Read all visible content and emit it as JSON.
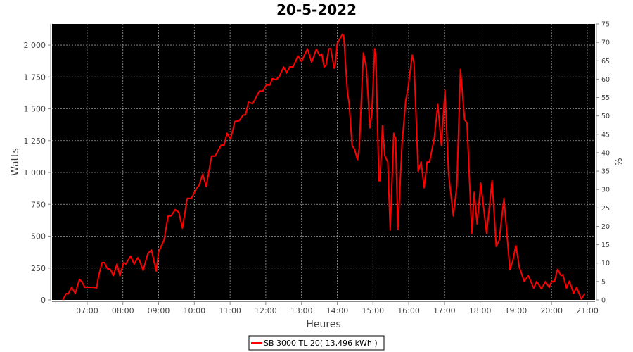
{
  "chart_data": {
    "type": "line",
    "title": "20-5-2022",
    "xlabel": "Heures",
    "ylabel": "Watts",
    "ylabel_right": "%",
    "xlim": [
      "06:01",
      "21:13"
    ],
    "ylim": [
      0,
      2166
    ],
    "ylim_right": [
      0,
      75
    ],
    "grid": true,
    "background": "#000000",
    "grid_color": "#9a9a9a",
    "legend_position": "bottom",
    "x_ticks": [
      "07:00",
      "08:00",
      "09:00",
      "10:00",
      "11:00",
      "12:00",
      "13:00",
      "14:00",
      "15:00",
      "16:00",
      "17:00",
      "18:00",
      "19:00",
      "20:00",
      "21:00"
    ],
    "y_ticks": [
      {
        "value": 0,
        "label": "0"
      },
      {
        "value": 250,
        "label": "250"
      },
      {
        "value": 500,
        "label": "500"
      },
      {
        "value": 750,
        "label": "750"
      },
      {
        "value": 1000,
        "label": "1 000"
      },
      {
        "value": 1250,
        "label": "1 250"
      },
      {
        "value": 1500,
        "label": "1 500"
      },
      {
        "value": 1750,
        "label": "1 750"
      },
      {
        "value": 2000,
        "label": "2 000"
      }
    ],
    "y_ticks_right": [
      "0",
      "5",
      "10",
      "15",
      "20",
      "25",
      "30",
      "35",
      "40",
      "45",
      "50",
      "55",
      "60",
      "65",
      "70",
      "75"
    ],
    "series": [
      {
        "name": "SB 3000 TL 20( 13,496 kWh )",
        "color": "#ff0000",
        "points": [
          [
            "06:19",
            0
          ],
          [
            "06:25",
            51
          ],
          [
            "06:28",
            46
          ],
          [
            "06:34",
            99
          ],
          [
            "06:40",
            50
          ],
          [
            "06:47",
            160
          ],
          [
            "06:51",
            144
          ],
          [
            "06:56",
            99
          ],
          [
            "07:10",
            99
          ],
          [
            "07:16",
            94
          ],
          [
            "07:19",
            182
          ],
          [
            "07:25",
            293
          ],
          [
            "07:29",
            293
          ],
          [
            "07:34",
            245
          ],
          [
            "07:39",
            239
          ],
          [
            "07:44",
            190
          ],
          [
            "07:50",
            282
          ],
          [
            "07:55",
            190
          ],
          [
            "08:01",
            293
          ],
          [
            "08:05",
            282
          ],
          [
            "08:13",
            343
          ],
          [
            "08:19",
            282
          ],
          [
            "08:25",
            331
          ],
          [
            "08:28",
            309
          ],
          [
            "08:34",
            232
          ],
          [
            "08:42",
            365
          ],
          [
            "08:48",
            392
          ],
          [
            "08:56",
            226
          ],
          [
            "09:00",
            376
          ],
          [
            "09:06",
            438
          ],
          [
            "09:09",
            466
          ],
          [
            "09:16",
            659
          ],
          [
            "09:21",
            659
          ],
          [
            "09:28",
            709
          ],
          [
            "09:34",
            687
          ],
          [
            "09:40",
            563
          ],
          [
            "09:48",
            797
          ],
          [
            "09:55",
            797
          ],
          [
            "10:03",
            871
          ],
          [
            "10:08",
            899
          ],
          [
            "10:14",
            987
          ],
          [
            "10:20",
            890
          ],
          [
            "10:29",
            1129
          ],
          [
            "10:35",
            1129
          ],
          [
            "10:45",
            1215
          ],
          [
            "10:50",
            1215
          ],
          [
            "10:55",
            1308
          ],
          [
            "11:01",
            1263
          ],
          [
            "11:08",
            1400
          ],
          [
            "11:15",
            1405
          ],
          [
            "11:22",
            1451
          ],
          [
            "11:26",
            1451
          ],
          [
            "11:31",
            1552
          ],
          [
            "11:38",
            1540
          ],
          [
            "11:49",
            1639
          ],
          [
            "11:55",
            1639
          ],
          [
            "12:01",
            1687
          ],
          [
            "12:07",
            1687
          ],
          [
            "12:11",
            1737
          ],
          [
            "12:17",
            1728
          ],
          [
            "12:23",
            1755
          ],
          [
            "12:30",
            1829
          ],
          [
            "12:35",
            1779
          ],
          [
            "12:40",
            1829
          ],
          [
            "12:46",
            1829
          ],
          [
            "12:54",
            1915
          ],
          [
            "13:00",
            1871
          ],
          [
            "13:10",
            1971
          ],
          [
            "13:17",
            1866
          ],
          [
            "13:25",
            1967
          ],
          [
            "13:31",
            1915
          ],
          [
            "13:34",
            1930
          ],
          [
            "13:38",
            1829
          ],
          [
            "13:41",
            1838
          ],
          [
            "13:46",
            1971
          ],
          [
            "13:49",
            1971
          ],
          [
            "13:55",
            1819
          ],
          [
            "13:57",
            1847
          ],
          [
            "14:00",
            2013
          ],
          [
            "14:09",
            2087
          ],
          [
            "14:11",
            2068
          ],
          [
            "14:17",
            1635
          ],
          [
            "14:20",
            1543
          ],
          [
            "14:25",
            1212
          ],
          [
            "14:29",
            1184
          ],
          [
            "14:34",
            1101
          ],
          [
            "14:37",
            1193
          ],
          [
            "14:44",
            1939
          ],
          [
            "14:49",
            1819
          ],
          [
            "14:55",
            1350
          ],
          [
            "14:58",
            1460
          ],
          [
            "15:03",
            1971
          ],
          [
            "15:05",
            1912
          ],
          [
            "15:10",
            935
          ],
          [
            "15:12",
            935
          ],
          [
            "15:16",
            1368
          ],
          [
            "15:20",
            1129
          ],
          [
            "15:25",
            1083
          ],
          [
            "15:29",
            549
          ],
          [
            "15:35",
            1308
          ],
          [
            "15:38",
            1267
          ],
          [
            "15:42",
            552
          ],
          [
            "15:49",
            1230
          ],
          [
            "15:55",
            1562
          ],
          [
            "15:59",
            1663
          ],
          [
            "16:06",
            1921
          ],
          [
            "16:09",
            1856
          ],
          [
            "16:16",
            1009
          ],
          [
            "16:21",
            1083
          ],
          [
            "16:26",
            880
          ],
          [
            "16:31",
            1083
          ],
          [
            "16:35",
            1083
          ],
          [
            "16:43",
            1267
          ],
          [
            "16:49",
            1534
          ],
          [
            "16:55",
            1212
          ],
          [
            "17:01",
            1645
          ],
          [
            "17:07",
            991
          ],
          [
            "17:15",
            659
          ],
          [
            "17:21",
            899
          ],
          [
            "17:27",
            1810
          ],
          [
            "17:34",
            1414
          ],
          [
            "17:38",
            1387
          ],
          [
            "17:46",
            521
          ],
          [
            "17:50",
            844
          ],
          [
            "17:55",
            595
          ],
          [
            "18:01",
            917
          ],
          [
            "18:11",
            521
          ],
          [
            "18:20",
            935
          ],
          [
            "18:27",
            420
          ],
          [
            "18:32",
            466
          ],
          [
            "18:40",
            797
          ],
          [
            "18:50",
            236
          ],
          [
            "18:55",
            309
          ],
          [
            "19:00",
            429
          ],
          [
            "19:06",
            254
          ],
          [
            "19:14",
            147
          ],
          [
            "19:21",
            190
          ],
          [
            "19:30",
            92
          ],
          [
            "19:35",
            144
          ],
          [
            "19:43",
            88
          ],
          [
            "19:50",
            144
          ],
          [
            "19:56",
            98
          ],
          [
            "20:00",
            144
          ],
          [
            "20:05",
            147
          ],
          [
            "20:10",
            239
          ],
          [
            "20:16",
            190
          ],
          [
            "20:19",
            199
          ],
          [
            "20:25",
            92
          ],
          [
            "20:30",
            147
          ],
          [
            "20:37",
            51
          ],
          [
            "20:42",
            98
          ],
          [
            "20:50",
            6
          ],
          [
            "20:56",
            51
          ]
        ]
      }
    ]
  }
}
